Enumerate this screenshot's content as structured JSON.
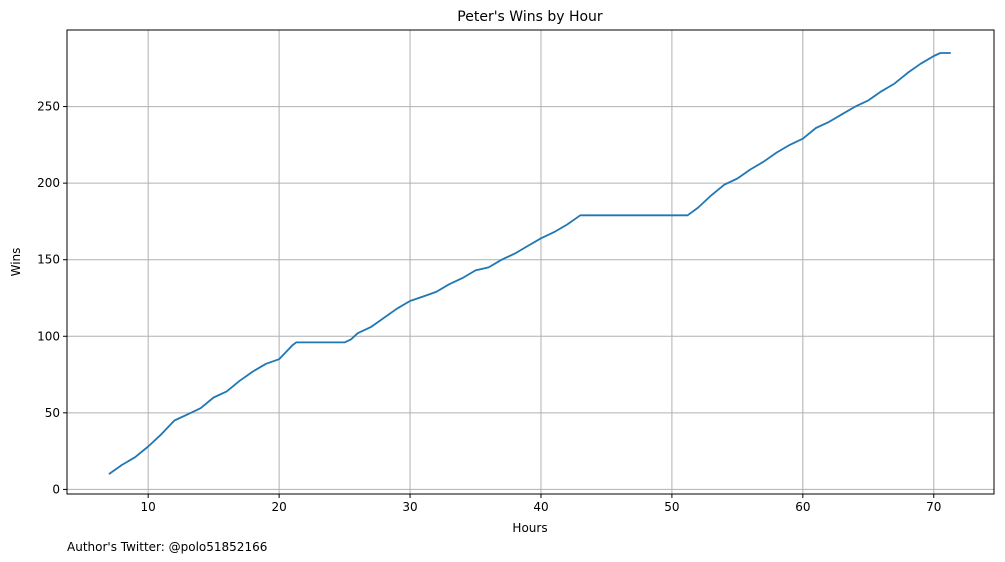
{
  "chart_data": {
    "type": "line",
    "title": "Peter's Wins by Hour",
    "xlabel": "Hours",
    "ylabel": "Wins",
    "xlim": [
      3.8,
      74.6
    ],
    "ylim": [
      -3,
      300
    ],
    "xticks": [
      10,
      20,
      30,
      40,
      50,
      60,
      70
    ],
    "yticks": [
      0,
      50,
      100,
      150,
      200,
      250
    ],
    "grid": true,
    "series": [
      {
        "color": "#1f77b4",
        "points": [
          [
            7.0,
            10
          ],
          [
            8.0,
            16
          ],
          [
            9.0,
            21
          ],
          [
            10.0,
            28
          ],
          [
            11.0,
            36
          ],
          [
            12.0,
            45
          ],
          [
            13.0,
            49
          ],
          [
            14.0,
            53
          ],
          [
            15.0,
            60
          ],
          [
            16.0,
            64
          ],
          [
            17.0,
            71
          ],
          [
            18.0,
            77
          ],
          [
            19.0,
            82
          ],
          [
            20.0,
            85
          ],
          [
            21.0,
            94
          ],
          [
            21.3,
            96
          ],
          [
            25.0,
            96
          ],
          [
            25.5,
            98
          ],
          [
            26.0,
            102
          ],
          [
            27.0,
            106
          ],
          [
            28.0,
            112
          ],
          [
            29.0,
            118
          ],
          [
            30.0,
            123
          ],
          [
            31.0,
            126
          ],
          [
            32.0,
            129
          ],
          [
            33.0,
            134
          ],
          [
            34.0,
            138
          ],
          [
            35.0,
            143
          ],
          [
            36.0,
            145
          ],
          [
            37.0,
            150
          ],
          [
            38.0,
            154
          ],
          [
            39.0,
            159
          ],
          [
            40.0,
            164
          ],
          [
            41.0,
            168
          ],
          [
            42.0,
            173
          ],
          [
            43.0,
            179
          ],
          [
            51.2,
            179
          ],
          [
            52.0,
            184
          ],
          [
            53.0,
            192
          ],
          [
            54.0,
            199
          ],
          [
            55.0,
            203
          ],
          [
            56.0,
            209
          ],
          [
            57.0,
            214
          ],
          [
            58.0,
            220
          ],
          [
            59.0,
            225
          ],
          [
            60.0,
            229
          ],
          [
            61.0,
            236
          ],
          [
            62.0,
            240
          ],
          [
            63.0,
            245
          ],
          [
            64.0,
            250
          ],
          [
            65.0,
            254
          ],
          [
            66.0,
            260
          ],
          [
            67.0,
            265
          ],
          [
            68.0,
            272
          ],
          [
            69.0,
            278
          ],
          [
            70.0,
            283
          ],
          [
            70.5,
            285
          ],
          [
            71.3,
            285
          ]
        ]
      }
    ],
    "footnote": "Author's Twitter: @polo51852166"
  }
}
